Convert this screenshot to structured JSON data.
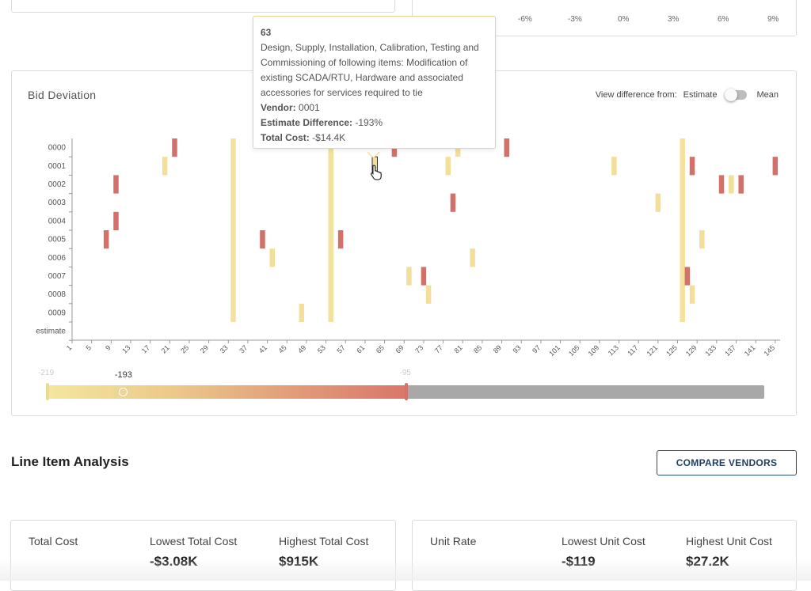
{
  "top_right_axis": {
    "ticks": [
      "-6%",
      "-3%",
      "0%",
      "3%",
      "6%",
      "9%"
    ]
  },
  "bid_deviation": {
    "title": "Bid Deviation",
    "view_difference_label": "View difference from:",
    "toggle_left": "Estimate",
    "toggle_right": "Mean",
    "slider": {
      "min_label": "-219",
      "max_label": "-95",
      "current_label": "-193",
      "min": -219,
      "max": -95,
      "current": -193,
      "range_fraction": 0.5
    }
  },
  "tooltip": {
    "item_number": "63",
    "description": "Design, Supply, Installation, Calibration, Testing and Commissioning of following items: Modification of existing SCADA/RTU, Hardware and associated accessories for services required to tie",
    "vendor_label": "Vendor:",
    "vendor_value": "0001",
    "estimate_diff_label": "Estimate Difference:",
    "estimate_diff_value": "-193%",
    "total_cost_label": "Total Cost:",
    "total_cost_value": "-$14.4K"
  },
  "chart_data": {
    "type": "heatmap",
    "title": "Bid Deviation",
    "rows": [
      "0000",
      "0001",
      "0002",
      "0003",
      "0004",
      "0005",
      "0006",
      "0007",
      "0008",
      "0009",
      "estimate"
    ],
    "x_ticks": [
      1,
      5,
      9,
      13,
      17,
      21,
      25,
      29,
      33,
      37,
      41,
      45,
      49,
      53,
      57,
      61,
      65,
      69,
      73,
      77,
      81,
      85,
      89,
      93,
      97,
      101,
      105,
      109,
      113,
      117,
      121,
      125,
      129,
      133,
      137,
      141,
      145
    ],
    "x_range": [
      1,
      146
    ],
    "cells": [
      {
        "row": "0000",
        "item": 22,
        "level": "high"
      },
      {
        "row": "0000",
        "item": 67,
        "level": "high"
      },
      {
        "row": "0000",
        "item": 80,
        "level": "low"
      },
      {
        "row": "0000",
        "item": 90,
        "level": "high"
      },
      {
        "row": "0001",
        "item": 20,
        "level": "low"
      },
      {
        "row": "0001",
        "item": 63,
        "level": "low"
      },
      {
        "row": "0001",
        "item": 78,
        "level": "low"
      },
      {
        "row": "0001",
        "item": 112,
        "level": "low"
      },
      {
        "row": "0001",
        "item": 128,
        "level": "high"
      },
      {
        "row": "0001",
        "item": 145,
        "level": "high"
      },
      {
        "row": "0002",
        "item": 10,
        "level": "high"
      },
      {
        "row": "0002",
        "item": 134,
        "level": "high"
      },
      {
        "row": "0002",
        "item": 136,
        "level": "low"
      },
      {
        "row": "0002",
        "item": 138,
        "level": "high"
      },
      {
        "row": "0003",
        "item": 79,
        "level": "high"
      },
      {
        "row": "0003",
        "item": 121,
        "level": "low"
      },
      {
        "row": "0004",
        "item": 10,
        "level": "high"
      },
      {
        "row": "0005",
        "item": 8,
        "level": "high"
      },
      {
        "row": "0005",
        "item": 40,
        "level": "high"
      },
      {
        "row": "0005",
        "item": 56,
        "level": "high"
      },
      {
        "row": "0005",
        "item": 130,
        "level": "low"
      },
      {
        "row": "0006",
        "item": 42,
        "level": "low"
      },
      {
        "row": "0006",
        "item": 83,
        "level": "low"
      },
      {
        "row": "0007",
        "item": 70,
        "level": "low"
      },
      {
        "row": "0007",
        "item": 73,
        "level": "high"
      },
      {
        "row": "0007",
        "item": 127,
        "level": "high"
      },
      {
        "row": "0008",
        "item": 74,
        "level": "low"
      },
      {
        "row": "0008",
        "item": 128,
        "level": "low"
      },
      {
        "row": "0009",
        "item": 48,
        "level": "low"
      }
    ],
    "full_columns": [
      {
        "item": 34,
        "from_row": "0000",
        "to_row": "0009",
        "level": "low"
      },
      {
        "item": 54,
        "from_row": "0000",
        "to_row": "0009",
        "level": "low"
      },
      {
        "item": 126,
        "from_row": "0000",
        "to_row": "0009",
        "level": "low"
      }
    ],
    "highlighted": {
      "row": "0001",
      "item": 63
    }
  },
  "line_item_analysis": {
    "title": "Line Item Analysis",
    "compare_button": "COMPARE VENDORS"
  },
  "total_cost_card": {
    "label": "Total Cost",
    "lowest_label": "Lowest Total Cost",
    "lowest_value": "-$3.08K",
    "highest_label": "Highest Total Cost",
    "highest_value": "$915K"
  },
  "unit_rate_card": {
    "label": "Unit Rate",
    "lowest_label": "Lowest Unit Cost",
    "lowest_value": "-$119",
    "highest_label": "Highest Unit Cost",
    "highest_value": "$27.2K"
  },
  "colors": {
    "low": "#f1df9a",
    "high": "#d4706a",
    "accent": "#1f3f62"
  }
}
